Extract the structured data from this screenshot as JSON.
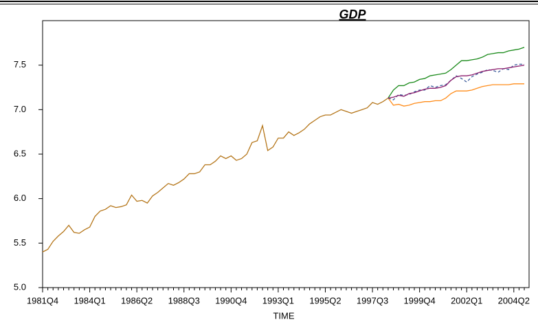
{
  "chart_data": {
    "type": "line",
    "title": "GDP",
    "x_label": "TIME",
    "categories": [
      "1981Q4",
      null,
      null,
      null,
      null,
      null,
      null,
      null,
      null,
      "1984Q1",
      null,
      null,
      null,
      null,
      null,
      null,
      null,
      null,
      "1986Q2",
      null,
      null,
      null,
      null,
      null,
      null,
      null,
      null,
      "1988Q3",
      null,
      null,
      null,
      null,
      null,
      null,
      null,
      null,
      "1990Q4",
      null,
      null,
      null,
      null,
      null,
      null,
      null,
      null,
      "1993Q1",
      null,
      null,
      null,
      null,
      null,
      null,
      null,
      null,
      "1995Q2",
      null,
      null,
      null,
      null,
      null,
      null,
      null,
      null,
      "1997Q3",
      null,
      null,
      null,
      null,
      null,
      null,
      null,
      null,
      "1999Q4",
      null,
      null,
      null,
      null,
      null,
      null,
      null,
      null,
      "2002Q1",
      null,
      null,
      null,
      null,
      null,
      null,
      null,
      null,
      "2004Q2",
      null,
      null
    ],
    "ylim": [
      5,
      8
    ],
    "yticks": [
      {
        "value": 5,
        "label": "5.0"
      },
      5.5,
      {
        "value": 6,
        "label": "6.0"
      },
      6.5,
      {
        "value": 7,
        "label": "7.0"
      },
      7.5
    ],
    "series": [
      {
        "color": "#b5761a",
        "values": [
          5.4,
          5.43,
          5.52,
          5.58,
          5.63,
          5.7,
          5.62,
          5.61,
          5.65,
          5.68,
          5.8,
          5.86,
          5.88,
          5.92,
          5.9,
          5.91,
          5.93,
          6.04,
          5.97,
          5.98,
          5.95,
          6.03,
          6.07,
          6.12,
          6.17,
          6.15,
          6.18,
          6.22,
          6.28,
          6.28,
          6.3,
          6.38,
          6.38,
          6.42,
          6.48,
          6.45,
          6.48,
          6.43,
          6.45,
          6.5,
          6.63,
          6.65,
          6.82,
          6.54,
          6.58,
          6.68,
          6.68,
          6.75,
          6.71,
          6.74,
          6.78,
          6.84,
          6.88,
          6.92,
          6.94,
          6.94,
          6.97,
          7.0,
          6.98,
          6.96,
          6.98,
          7.0,
          7.02,
          7.08,
          7.06,
          7.09,
          7.13,
          null,
          null,
          null,
          null,
          null,
          null,
          null,
          null,
          null,
          null,
          null,
          null,
          null,
          null,
          null,
          null,
          null,
          null,
          null,
          null,
          null,
          null,
          null,
          null,
          null,
          null
        ]
      },
      {
        "color": "#1a8a1a",
        "values": [
          null,
          null,
          null,
          null,
          null,
          null,
          null,
          null,
          null,
          null,
          null,
          null,
          null,
          null,
          null,
          null,
          null,
          null,
          null,
          null,
          null,
          null,
          null,
          null,
          null,
          null,
          null,
          null,
          null,
          null,
          null,
          null,
          null,
          null,
          null,
          null,
          null,
          null,
          null,
          null,
          null,
          null,
          null,
          null,
          null,
          null,
          null,
          null,
          null,
          null,
          null,
          null,
          null,
          null,
          null,
          null,
          null,
          null,
          null,
          null,
          null,
          null,
          null,
          null,
          null,
          null,
          7.13,
          7.22,
          7.27,
          7.27,
          7.3,
          7.31,
          7.34,
          7.35,
          7.38,
          7.39,
          7.4,
          7.41,
          7.45,
          7.5,
          7.55,
          7.55,
          7.56,
          7.57,
          7.59,
          7.62,
          7.63,
          7.64,
          7.64,
          7.66,
          7.67,
          7.68,
          7.7
        ]
      },
      {
        "color": "#ff8c1a",
        "values": [
          null,
          null,
          null,
          null,
          null,
          null,
          null,
          null,
          null,
          null,
          null,
          null,
          null,
          null,
          null,
          null,
          null,
          null,
          null,
          null,
          null,
          null,
          null,
          null,
          null,
          null,
          null,
          null,
          null,
          null,
          null,
          null,
          null,
          null,
          null,
          null,
          null,
          null,
          null,
          null,
          null,
          null,
          null,
          null,
          null,
          null,
          null,
          null,
          null,
          null,
          null,
          null,
          null,
          null,
          null,
          null,
          null,
          null,
          null,
          null,
          null,
          null,
          null,
          null,
          null,
          null,
          7.13,
          7.05,
          7.06,
          7.04,
          7.05,
          7.07,
          7.08,
          7.09,
          7.09,
          7.1,
          7.1,
          7.13,
          7.18,
          7.21,
          7.21,
          7.21,
          7.22,
          7.24,
          7.26,
          7.27,
          7.28,
          7.28,
          7.28,
          7.28,
          7.29,
          7.29,
          7.29
        ]
      },
      {
        "color": "#3a5a9a",
        "dashed": true,
        "values": [
          null,
          null,
          null,
          null,
          null,
          null,
          null,
          null,
          null,
          null,
          null,
          null,
          null,
          null,
          null,
          null,
          null,
          null,
          null,
          null,
          null,
          null,
          null,
          null,
          null,
          null,
          null,
          null,
          null,
          null,
          null,
          null,
          null,
          null,
          null,
          null,
          null,
          null,
          null,
          null,
          null,
          null,
          null,
          null,
          null,
          null,
          null,
          null,
          null,
          null,
          null,
          null,
          null,
          null,
          null,
          null,
          null,
          null,
          null,
          null,
          null,
          null,
          null,
          null,
          null,
          null,
          7.13,
          7.11,
          7.17,
          7.16,
          7.17,
          7.2,
          7.22,
          7.22,
          7.27,
          7.25,
          7.27,
          7.28,
          7.33,
          7.38,
          7.35,
          7.31,
          7.37,
          7.4,
          7.42,
          7.45,
          7.44,
          7.42,
          7.46,
          7.45,
          7.5,
          7.51,
          7.51
        ]
      },
      {
        "color": "#8b1a6b",
        "values": [
          null,
          null,
          null,
          null,
          null,
          null,
          null,
          null,
          null,
          null,
          null,
          null,
          null,
          null,
          null,
          null,
          null,
          null,
          null,
          null,
          null,
          null,
          null,
          null,
          null,
          null,
          null,
          null,
          null,
          null,
          null,
          null,
          null,
          null,
          null,
          null,
          null,
          null,
          null,
          null,
          null,
          null,
          null,
          null,
          null,
          null,
          null,
          null,
          null,
          null,
          null,
          null,
          null,
          null,
          null,
          null,
          null,
          null,
          null,
          null,
          null,
          null,
          null,
          null,
          null,
          null,
          7.13,
          7.14,
          7.16,
          7.15,
          7.18,
          7.19,
          7.21,
          7.23,
          7.24,
          7.24,
          7.25,
          7.27,
          7.33,
          7.37,
          7.38,
          7.38,
          7.39,
          7.41,
          7.43,
          7.44,
          7.45,
          7.46,
          7.46,
          7.47,
          7.48,
          7.49,
          7.5
        ]
      }
    ]
  }
}
